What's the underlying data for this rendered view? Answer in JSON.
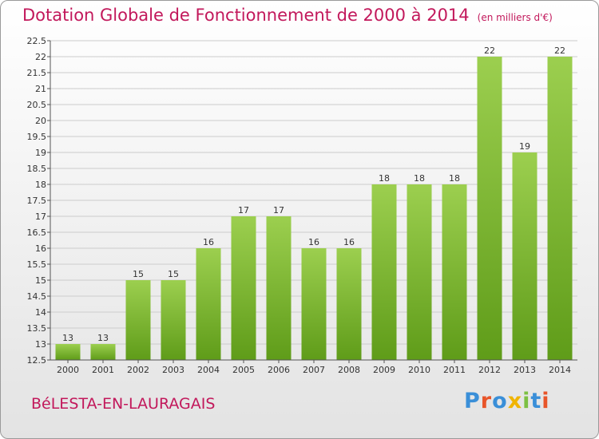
{
  "title": "Dotation Globale de Fonctionnement de 2000 à 2014",
  "subtitle": "(en milliers d'€)",
  "commune": "BéLESTA-EN-LAURAGAIS",
  "logo": {
    "text": "Proxiti",
    "colors": [
      "#3a8fd8",
      "#e8552a",
      "#3a8fd8",
      "#f0b400",
      "#7cc043",
      "#3a8fd8",
      "#e8552a"
    ]
  },
  "colors": {
    "title": "#c2185b",
    "bar_light": "#9ccf4f",
    "bar_dark": "#5f9c19",
    "grid": "#cccccc",
    "axis": "#555555"
  },
  "chart_data": {
    "type": "bar",
    "categories": [
      "2000",
      "2001",
      "2002",
      "2003",
      "2004",
      "2005",
      "2006",
      "2007",
      "2008",
      "2009",
      "2010",
      "2011",
      "2012",
      "2013",
      "2014"
    ],
    "values": [
      13,
      13,
      15,
      15,
      16,
      17,
      17,
      16,
      16,
      18,
      18,
      18,
      22,
      19,
      22
    ],
    "data_labels": [
      "13",
      "13",
      "15",
      "15",
      "16",
      "17",
      "17",
      "16",
      "16",
      "18",
      "18",
      "18",
      "22",
      "19",
      "22"
    ],
    "ylim": [
      12.5,
      22.5
    ],
    "yticks": [
      "12.5",
      "13",
      "13.5",
      "14",
      "14.5",
      "15",
      "15.5",
      "16",
      "16.5",
      "17",
      "17.5",
      "18",
      "18.5",
      "19",
      "19.5",
      "20",
      "20.5",
      "21",
      "21.5",
      "22",
      "22.5"
    ],
    "grid": true
  }
}
